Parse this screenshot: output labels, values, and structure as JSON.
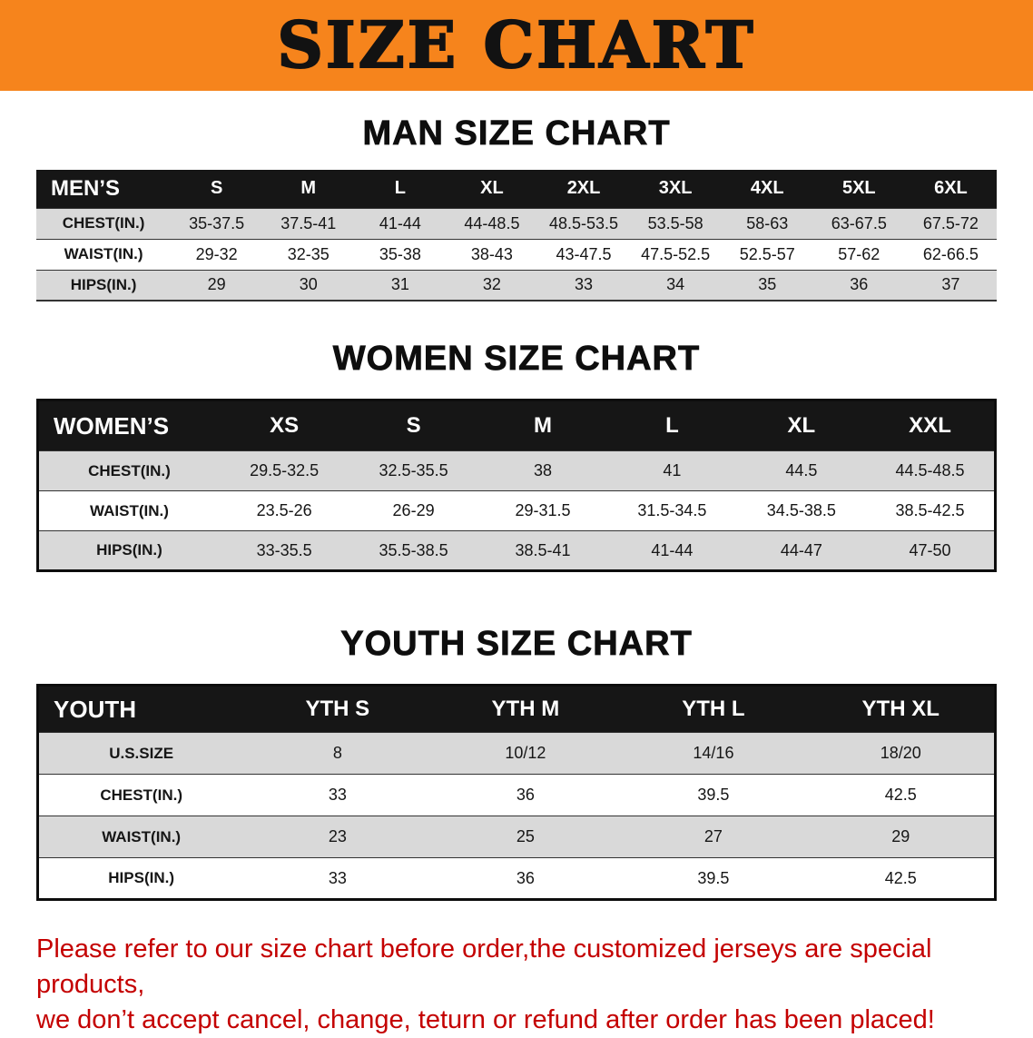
{
  "colors": {
    "accent": "#f6841c",
    "row-gray": "#d9d9d9",
    "red": "#c40000"
  },
  "banner": {
    "title": "SIZE CHART"
  },
  "sections": {
    "men": {
      "heading": "MAN SIZE CHART",
      "table": {
        "header": [
          "MEN’S",
          "S",
          "M",
          "L",
          "XL",
          "2XL",
          "3XL",
          "4XL",
          "5XL",
          "6XL"
        ],
        "rows": [
          [
            "CHEST(IN.)",
            "35-37.5",
            "37.5-41",
            "41-44",
            "44-48.5",
            "48.5-53.5",
            "53.5-58",
            "58-63",
            "63-67.5",
            "67.5-72"
          ],
          [
            "WAIST(IN.)",
            "29-32",
            "32-35",
            "35-38",
            "38-43",
            "43-47.5",
            "47.5-52.5",
            "52.5-57",
            "57-62",
            "62-66.5"
          ],
          [
            "HIPS(IN.)",
            "29",
            "30",
            "31",
            "32",
            "33",
            "34",
            "35",
            "36",
            "37"
          ]
        ]
      }
    },
    "women": {
      "heading": "WOMEN SIZE CHART",
      "table": {
        "header": [
          "WOMEN’S",
          "XS",
          "S",
          "M",
          "L",
          "XL",
          "XXL"
        ],
        "rows": [
          [
            "CHEST(IN.)",
            "29.5-32.5",
            "32.5-35.5",
            "38",
            "41",
            "44.5",
            "44.5-48.5"
          ],
          [
            "WAIST(IN.)",
            "23.5-26",
            "26-29",
            "29-31.5",
            "31.5-34.5",
            "34.5-38.5",
            "38.5-42.5"
          ],
          [
            "HIPS(IN.)",
            "33-35.5",
            "35.5-38.5",
            "38.5-41",
            "41-44",
            "44-47",
            "47-50"
          ]
        ]
      }
    },
    "youth": {
      "heading": "YOUTH SIZE CHART",
      "table": {
        "header": [
          "YOUTH",
          "YTH S",
          "YTH M",
          "YTH L",
          "YTH XL"
        ],
        "rows": [
          [
            "U.S.SIZE",
            "8",
            "10/12",
            "14/16",
            "18/20"
          ],
          [
            "CHEST(IN.)",
            "33",
            "36",
            "39.5",
            "42.5"
          ],
          [
            "WAIST(IN.)",
            "23",
            "25",
            "27",
            "29"
          ],
          [
            "HIPS(IN.)",
            "33",
            "36",
            "39.5",
            "42.5"
          ]
        ]
      }
    }
  },
  "footer": {
    "line1": "Please refer to our size chart before order,the customized jerseys are special products,",
    "line2": "we don’t accept cancel, change, teturn or refund after order has been placed!"
  }
}
